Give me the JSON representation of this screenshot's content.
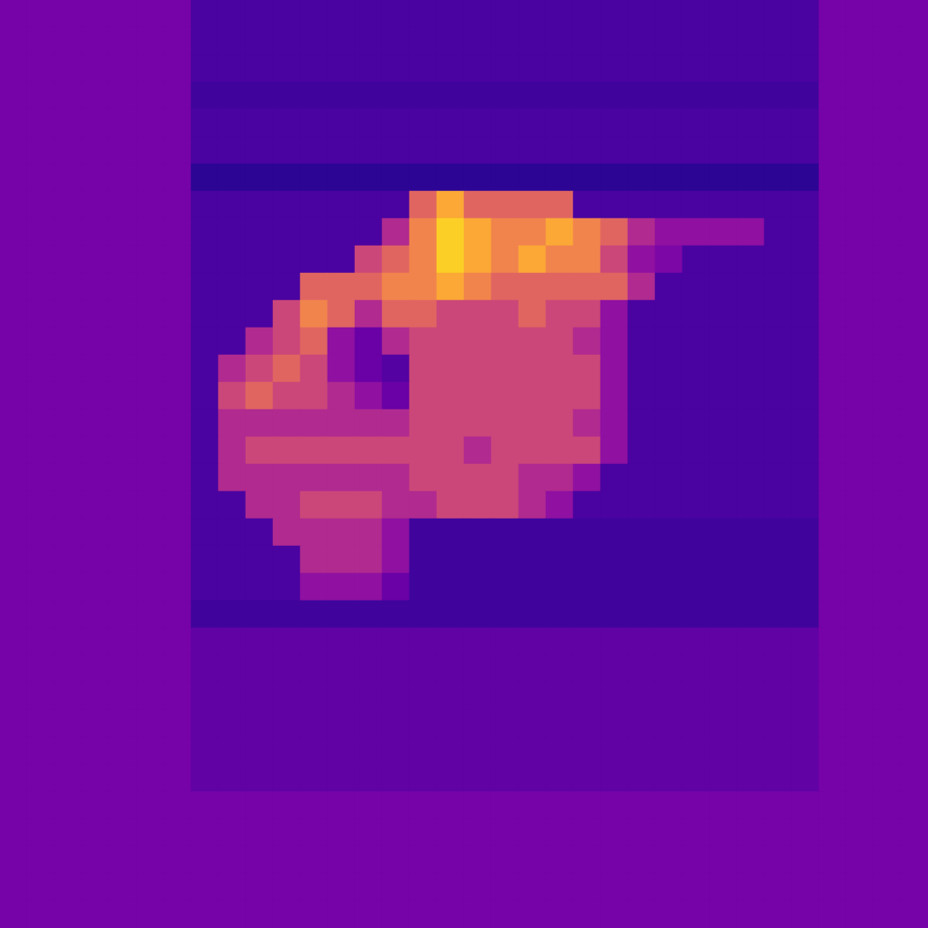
{
  "chart_data": {
    "type": "heatmap",
    "tick_labels": false,
    "grid": false,
    "value_range": [
      0,
      10
    ],
    "cells": [
      [
        2.3,
        2.3,
        2.3,
        2.3,
        2.3,
        2.3,
        2.3,
        1.2,
        1.2,
        1.2,
        1.2,
        1.2,
        1.2,
        1.2,
        1.2,
        1.2,
        1.2,
        1.2,
        1.2,
        1.2,
        1.2,
        1.2,
        1.2,
        1.2,
        1.2,
        1.2,
        1.2,
        1.2,
        1.2,
        1.2,
        2.3,
        2.3,
        2.3,
        2.3
      ],
      [
        2.3,
        2.3,
        2.3,
        2.3,
        2.3,
        2.3,
        2.3,
        1.2,
        1.2,
        1.2,
        1.2,
        1.2,
        1.2,
        1.2,
        1.2,
        1.2,
        1.2,
        1.2,
        1.2,
        1.2,
        1.2,
        1.2,
        1.2,
        1.2,
        1.2,
        1.2,
        1.2,
        1.2,
        1.2,
        1.2,
        2.3,
        2.3,
        2.3,
        2.3
      ],
      [
        2.3,
        2.3,
        2.3,
        2.3,
        2.3,
        2.3,
        2.3,
        1.2,
        1.2,
        1.2,
        1.2,
        1.2,
        1.2,
        1.2,
        1.2,
        1.2,
        1.2,
        1.2,
        1.2,
        1.2,
        1.2,
        1.2,
        1.2,
        1.2,
        1.2,
        1.2,
        1.2,
        1.2,
        1.2,
        1.2,
        2.3,
        2.3,
        2.3,
        2.3
      ],
      [
        2.3,
        2.3,
        2.3,
        2.3,
        2.3,
        2.3,
        2.3,
        1.0,
        1.0,
        1.0,
        1.0,
        1.0,
        1.0,
        1.0,
        1.0,
        1.0,
        1.0,
        1.0,
        1.0,
        1.0,
        1.0,
        1.0,
        1.0,
        1.0,
        1.0,
        1.0,
        1.0,
        1.0,
        1.0,
        1.0,
        2.3,
        2.3,
        2.3,
        2.3
      ],
      [
        2.3,
        2.3,
        2.3,
        2.3,
        2.3,
        2.3,
        2.3,
        1.2,
        1.2,
        1.2,
        1.2,
        1.2,
        1.2,
        1.2,
        1.2,
        1.2,
        1.2,
        1.2,
        1.2,
        1.2,
        1.2,
        1.2,
        1.2,
        1.2,
        1.2,
        1.2,
        1.2,
        1.2,
        1.2,
        1.2,
        2.3,
        2.3,
        2.3,
        2.3
      ],
      [
        2.3,
        2.3,
        2.3,
        2.3,
        2.3,
        2.3,
        2.3,
        1.2,
        1.2,
        1.2,
        1.2,
        1.2,
        1.2,
        1.2,
        1.2,
        1.2,
        1.2,
        1.2,
        1.2,
        1.2,
        1.2,
        1.2,
        1.2,
        1.2,
        1.2,
        1.2,
        1.2,
        1.2,
        1.2,
        1.2,
        2.3,
        2.3,
        2.3,
        2.3
      ],
      [
        2.3,
        2.3,
        2.3,
        2.3,
        2.3,
        2.3,
        2.3,
        0.6,
        0.6,
        0.6,
        0.6,
        0.6,
        0.6,
        0.6,
        0.6,
        0.6,
        0.6,
        0.6,
        0.6,
        0.6,
        0.6,
        0.6,
        0.6,
        0.6,
        0.6,
        0.6,
        0.6,
        0.6,
        0.6,
        0.6,
        2.3,
        2.3,
        2.3,
        2.3
      ],
      [
        2.3,
        2.3,
        2.3,
        2.3,
        2.3,
        2.3,
        2.3,
        1.2,
        1.2,
        1.2,
        1.2,
        1.2,
        1.2,
        1.2,
        1.2,
        6,
        8,
        6,
        6,
        6,
        6,
        1.2,
        1.2,
        1.2,
        1.2,
        1.2,
        1.2,
        1.2,
        1.2,
        1.2,
        2.3,
        2.3,
        2.3,
        2.3
      ],
      [
        2.3,
        2.3,
        2.3,
        2.3,
        2.3,
        2.3,
        2.3,
        1.2,
        1.2,
        1.2,
        1.2,
        1.2,
        1.2,
        1.2,
        4,
        7,
        9,
        8,
        7,
        7,
        8,
        7,
        6,
        4,
        3,
        3,
        3,
        3,
        1.2,
        1.2,
        2.3,
        2.3,
        2.3,
        2.3
      ],
      [
        2.3,
        2.3,
        2.3,
        2.3,
        2.3,
        2.3,
        2.3,
        1.2,
        1.2,
        1.2,
        1.2,
        1.2,
        1.2,
        5,
        6,
        7,
        9,
        8,
        7,
        8,
        7,
        7,
        5,
        3,
        2.5,
        1.2,
        1.2,
        1.2,
        1.2,
        1.2,
        2.3,
        2.3,
        2.3,
        2.3
      ],
      [
        2.3,
        2.3,
        2.3,
        2.3,
        2.3,
        2.3,
        2.3,
        1.2,
        1.2,
        1.2,
        1.2,
        6,
        6,
        6,
        7,
        7,
        8,
        7,
        6,
        6,
        6,
        6,
        6,
        4,
        1.2,
        1.2,
        1.2,
        1.2,
        1.2,
        1.2,
        2.3,
        2.3,
        2.3,
        2.3
      ],
      [
        2.3,
        2.3,
        2.3,
        2.3,
        2.3,
        2.3,
        2.3,
        1.2,
        1.2,
        1.2,
        5,
        7,
        6,
        4,
        6,
        6,
        5,
        5,
        5,
        6,
        5,
        5,
        3,
        1.2,
        1.2,
        1.2,
        1.2,
        1.2,
        1.2,
        1.2,
        2.3,
        2.3,
        2.3,
        2.3
      ],
      [
        2.3,
        2.3,
        2.3,
        2.3,
        2.3,
        2.3,
        2.3,
        1.2,
        1.2,
        4,
        5,
        6,
        3,
        2,
        4,
        5,
        5,
        5,
        5,
        5,
        5,
        4,
        3,
        1.2,
        1.2,
        1.2,
        1.2,
        1.2,
        1.2,
        1.2,
        2.3,
        2.3,
        2.3,
        2.3
      ],
      [
        2.3,
        2.3,
        2.3,
        2.3,
        2.3,
        2.3,
        2.3,
        1.2,
        4,
        5,
        6,
        5,
        3,
        2,
        1.5,
        5,
        5,
        5,
        5,
        5,
        5,
        5,
        3,
        1.2,
        1.2,
        1.2,
        1.2,
        1.2,
        1.2,
        1.2,
        2.3,
        2.3,
        2.3,
        2.3
      ],
      [
        2.3,
        2.3,
        2.3,
        2.3,
        2.3,
        2.3,
        2.3,
        1.2,
        5,
        6,
        5,
        5,
        4,
        3,
        2,
        5,
        5,
        5,
        5,
        5,
        5,
        5,
        3,
        1.2,
        1.2,
        1.2,
        1.2,
        1.2,
        1.2,
        1.2,
        2.3,
        2.3,
        2.3,
        2.3
      ],
      [
        2.3,
        2.3,
        2.3,
        2.3,
        2.3,
        2.3,
        2.3,
        1.2,
        4,
        4,
        4,
        4,
        4,
        4,
        4,
        5,
        5,
        5,
        5,
        5,
        5,
        4,
        3,
        1.2,
        1.2,
        1.2,
        1.2,
        1.2,
        1.2,
        1.2,
        2.3,
        2.3,
        2.3,
        2.3
      ],
      [
        2.3,
        2.3,
        2.3,
        2.3,
        2.3,
        2.3,
        2.3,
        1.2,
        4,
        5,
        5,
        5,
        5,
        5,
        5,
        5,
        5,
        4,
        5,
        5,
        5,
        5,
        3,
        1.2,
        1.2,
        1.2,
        1.2,
        1.2,
        1.2,
        1.2,
        2.3,
        2.3,
        2.3,
        2.3
      ],
      [
        2.3,
        2.3,
        2.3,
        2.3,
        2.3,
        2.3,
        2.3,
        1.2,
        4,
        4,
        4,
        4,
        4,
        4,
        4,
        5,
        5,
        5,
        5,
        4,
        4,
        3,
        1.2,
        1.2,
        1.2,
        1.2,
        1.2,
        1.2,
        1.2,
        1.2,
        2.3,
        2.3,
        2.3,
        2.3
      ],
      [
        2.3,
        2.3,
        2.3,
        2.3,
        2.3,
        2.3,
        2.3,
        1.2,
        1.2,
        4,
        4,
        5,
        5,
        5,
        4,
        4,
        5,
        5,
        5,
        4,
        3,
        1.2,
        1.2,
        1.2,
        1.2,
        1.2,
        1.2,
        1.2,
        1.2,
        1.2,
        2.3,
        2.3,
        2.3,
        2.3
      ],
      [
        2.3,
        2.3,
        2.3,
        2.3,
        2.3,
        2.3,
        2.3,
        1.2,
        1.2,
        1.2,
        4,
        4,
        4,
        4,
        3,
        1.0,
        1.0,
        1.0,
        1.0,
        1.0,
        1.0,
        1.0,
        1.0,
        1.0,
        1.0,
        1.0,
        1.0,
        1.0,
        1.0,
        1.0,
        2.3,
        2.3,
        2.3,
        2.3
      ],
      [
        2.3,
        2.3,
        2.3,
        2.3,
        2.3,
        2.3,
        2.3,
        1.2,
        1.2,
        1.2,
        1.2,
        4,
        4,
        4,
        3,
        1.0,
        1.0,
        1.0,
        1.0,
        1.0,
        1.0,
        1.0,
        1.0,
        1.0,
        1.0,
        1.0,
        1.0,
        1.0,
        1.0,
        1.0,
        2.3,
        2.3,
        2.3,
        2.3
      ],
      [
        2.3,
        2.3,
        2.3,
        2.3,
        2.3,
        2.3,
        2.3,
        1.2,
        1.2,
        1.2,
        1.2,
        3,
        3,
        3,
        2,
        1.0,
        1.0,
        1.0,
        1.0,
        1.0,
        1.0,
        1.0,
        1.0,
        1.0,
        1.0,
        1.0,
        1.0,
        1.0,
        1.0,
        1.0,
        2.3,
        2.3,
        2.3,
        2.3
      ],
      [
        2.3,
        2.3,
        2.3,
        2.3,
        2.3,
        2.3,
        2.3,
        1.0,
        1.0,
        1.0,
        1.0,
        1.0,
        1.0,
        1.0,
        1.0,
        1.0,
        1.0,
        1.0,
        1.0,
        1.0,
        1.0,
        1.0,
        1.0,
        1.0,
        1.0,
        1.0,
        1.0,
        1.0,
        1.0,
        1.0,
        2.3,
        2.3,
        2.3,
        2.3
      ],
      [
        2.3,
        2.3,
        2.3,
        2.3,
        2.3,
        2.3,
        2.3,
        1.8,
        1.8,
        1.8,
        1.8,
        1.8,
        1.8,
        1.8,
        1.8,
        1.8,
        1.8,
        1.8,
        1.8,
        1.8,
        1.8,
        1.8,
        1.8,
        1.8,
        1.8,
        1.8,
        1.8,
        1.8,
        1.8,
        1.8,
        2.3,
        2.3,
        2.3,
        2.3
      ],
      [
        2.3,
        2.3,
        2.3,
        2.3,
        2.3,
        2.3,
        2.3,
        1.8,
        1.8,
        1.8,
        1.8,
        1.8,
        1.8,
        1.8,
        1.8,
        1.8,
        1.8,
        1.8,
        1.8,
        1.8,
        1.8,
        1.8,
        1.8,
        1.8,
        1.8,
        1.8,
        1.8,
        1.8,
        1.8,
        1.8,
        2.3,
        2.3,
        2.3,
        2.3
      ],
      [
        2.3,
        2.3,
        2.3,
        2.3,
        2.3,
        2.3,
        2.3,
        1.8,
        1.8,
        1.8,
        1.8,
        1.8,
        1.8,
        1.8,
        1.8,
        1.8,
        1.8,
        1.8,
        1.8,
        1.8,
        1.8,
        1.8,
        1.8,
        1.8,
        1.8,
        1.8,
        1.8,
        1.8,
        1.8,
        1.8,
        2.3,
        2.3,
        2.3,
        2.3
      ],
      [
        2.3,
        2.3,
        2.3,
        2.3,
        2.3,
        2.3,
        2.3,
        1.8,
        1.8,
        1.8,
        1.8,
        1.8,
        1.8,
        1.8,
        1.8,
        1.8,
        1.8,
        1.8,
        1.8,
        1.8,
        1.8,
        1.8,
        1.8,
        1.8,
        1.8,
        1.8,
        1.8,
        1.8,
        1.8,
        1.8,
        2.3,
        2.3,
        2.3,
        2.3
      ],
      [
        2.3,
        2.3,
        2.3,
        2.3,
        2.3,
        2.3,
        2.3,
        1.8,
        1.8,
        1.8,
        1.8,
        1.8,
        1.8,
        1.8,
        1.8,
        1.8,
        1.8,
        1.8,
        1.8,
        1.8,
        1.8,
        1.8,
        1.8,
        1.8,
        1.8,
        1.8,
        1.8,
        1.8,
        1.8,
        1.8,
        2.3,
        2.3,
        2.3,
        2.3
      ],
      [
        2.3,
        2.3,
        2.3,
        2.3,
        2.3,
        2.3,
        2.3,
        1.8,
        1.8,
        1.8,
        1.8,
        1.8,
        1.8,
        1.8,
        1.8,
        1.8,
        1.8,
        1.8,
        1.8,
        1.8,
        1.8,
        1.8,
        1.8,
        1.8,
        1.8,
        1.8,
        1.8,
        1.8,
        1.8,
        1.8,
        2.3,
        2.3,
        2.3,
        2.3
      ],
      [
        2.3,
        2.3,
        2.3,
        2.3,
        2.3,
        2.3,
        2.3,
        2.3,
        2.3,
        2.3,
        2.3,
        2.3,
        2.3,
        2.3,
        2.3,
        2.3,
        2.3,
        2.3,
        2.3,
        2.3,
        2.3,
        2.3,
        2.3,
        2.3,
        2.3,
        2.3,
        2.3,
        2.3,
        2.3,
        2.3,
        2.3,
        2.3,
        2.3,
        2.3
      ],
      [
        2.3,
        2.3,
        2.3,
        2.3,
        2.3,
        2.3,
        2.3,
        2.3,
        2.3,
        2.3,
        2.3,
        2.3,
        2.3,
        2.3,
        2.3,
        2.3,
        2.3,
        2.3,
        2.3,
        2.3,
        2.3,
        2.3,
        2.3,
        2.3,
        2.3,
        2.3,
        2.3,
        2.3,
        2.3,
        2.3,
        2.3,
        2.3,
        2.3,
        2.3
      ],
      [
        2.3,
        2.3,
        2.3,
        2.3,
        2.3,
        2.3,
        2.3,
        2.3,
        2.3,
        2.3,
        2.3,
        2.3,
        2.3,
        2.3,
        2.3,
        2.3,
        2.3,
        2.3,
        2.3,
        2.3,
        2.3,
        2.3,
        2.3,
        2.3,
        2.3,
        2.3,
        2.3,
        2.3,
        2.3,
        2.3,
        2.3,
        2.3,
        2.3,
        2.3
      ],
      [
        2.3,
        2.3,
        2.3,
        2.3,
        2.3,
        2.3,
        2.3,
        2.3,
        2.3,
        2.3,
        2.3,
        2.3,
        2.3,
        2.3,
        2.3,
        2.3,
        2.3,
        2.3,
        2.3,
        2.3,
        2.3,
        2.3,
        2.3,
        2.3,
        2.3,
        2.3,
        2.3,
        2.3,
        2.3,
        2.3,
        2.3,
        2.3,
        2.3,
        2.3
      ],
      [
        2.3,
        2.3,
        2.3,
        2.3,
        2.3,
        2.3,
        2.3,
        2.3,
        2.3,
        2.3,
        2.3,
        2.3,
        2.3,
        2.3,
        2.3,
        2.3,
        2.3,
        2.3,
        2.3,
        2.3,
        2.3,
        2.3,
        2.3,
        2.3,
        2.3,
        2.3,
        2.3,
        2.3,
        2.3,
        2.3,
        2.3,
        2.3,
        2.3,
        2.3
      ]
    ]
  }
}
